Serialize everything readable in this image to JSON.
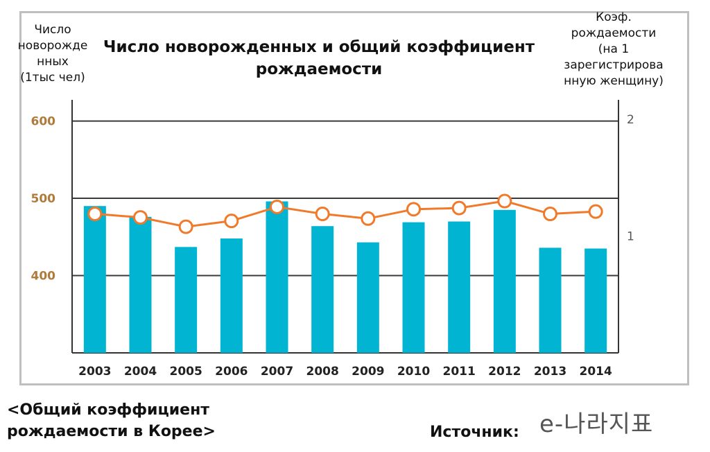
{
  "colors": {
    "bar": "#00b4d2",
    "line": "#f07a2a",
    "marker_fill": "#ffffff",
    "grid": "#3a3a3a",
    "axis": "#333333",
    "tick_left": "#b07a3a",
    "tick_right": "#555555"
  },
  "chart_data": {
    "type": "bar",
    "title": "Число новорожденных и общий коэффициент рождаемости",
    "xlabel": "",
    "ylabel": "Число новорожденных (1тыс чел)",
    "ylabel_right": "Коэф. рождаемости (на 1 зарегистрированную женщину)",
    "categories": [
      "2003",
      "2004",
      "2005",
      "2006",
      "2007",
      "2008",
      "2009",
      "2010",
      "2011",
      "2012",
      "2013",
      "2014"
    ],
    "series": [
      {
        "name": "Число новорожденных",
        "type": "bar",
        "axis": "left",
        "values": [
          490,
          476,
          437,
          448,
          496,
          464,
          443,
          469,
          470,
          485,
          436,
          435
        ]
      },
      {
        "name": "Коэф. рождаемости",
        "type": "line",
        "axis": "right",
        "values": [
          1.19,
          1.16,
          1.08,
          1.13,
          1.25,
          1.19,
          1.15,
          1.23,
          1.24,
          1.3,
          1.19,
          1.21
        ]
      }
    ],
    "ylim": [
      300,
      640
    ],
    "yticks": [
      400,
      500,
      600
    ],
    "ylim_right": [
      0,
      2.25
    ],
    "yticks_right": [
      1,
      2
    ],
    "grid": true
  },
  "labels": {
    "ylabel_left_lines": [
      "Число",
      "новорожде",
      "нных",
      "(1тыс чел)"
    ],
    "ylabel_right_lines": [
      "Коэф.",
      "рождаемости",
      "(на 1",
      "зарегистрирова",
      "нную женщину)"
    ],
    "title_lines": [
      "Число новорожденных и общий коэффициент",
      "рождаемости"
    ],
    "caption_lines": [
      "<Общий коэффициент",
      "рождаемости в Корее>"
    ],
    "source": "Источник:",
    "source_logo": "e-나라지표"
  }
}
